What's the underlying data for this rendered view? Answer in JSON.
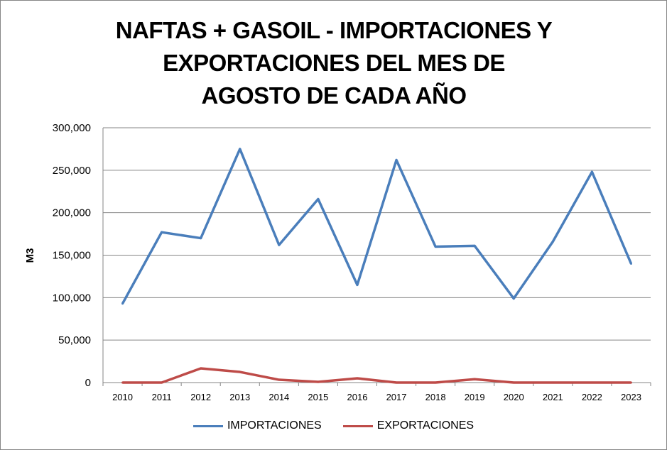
{
  "chart_data": {
    "type": "line",
    "title": "NAFTAS + GASOIL - IMPORTACIONES Y EXPORTACIONES DEL MES DE AGOSTO DE CADA AÑO",
    "title_lines": [
      "NAFTAS + GASOIL - IMPORTACIONES Y",
      "EXPORTACIONES DEL MES DE",
      "AGOSTO DE CADA AÑO"
    ],
    "xlabel": "",
    "ylabel": "M3",
    "ylim": [
      0,
      300000
    ],
    "yticks": [
      "0",
      "50,000",
      "100,000",
      "150,000",
      "200,000",
      "250,000",
      "300,000"
    ],
    "ytick_values": [
      0,
      50000,
      100000,
      150000,
      200000,
      250000,
      300000
    ],
    "categories": [
      "2010",
      "2011",
      "2012",
      "2013",
      "2014",
      "2015",
      "2016",
      "2017",
      "2018",
      "2019",
      "2020",
      "2021",
      "2022",
      "2023"
    ],
    "grid": "horizontal",
    "legend_position": "bottom",
    "series": [
      {
        "name": "IMPORTACIONES",
        "color": "#4A7EBB",
        "values": [
          93000,
          177000,
          170000,
          275000,
          162000,
          216000,
          115000,
          262000,
          160000,
          161000,
          99000,
          166000,
          248000,
          140000
        ]
      },
      {
        "name": "EXPORTACIONES",
        "color": "#BE4B48",
        "values": [
          0,
          0,
          16700,
          12500,
          3300,
          800,
          5000,
          0,
          0,
          4000,
          0,
          0,
          0,
          0
        ]
      }
    ]
  }
}
